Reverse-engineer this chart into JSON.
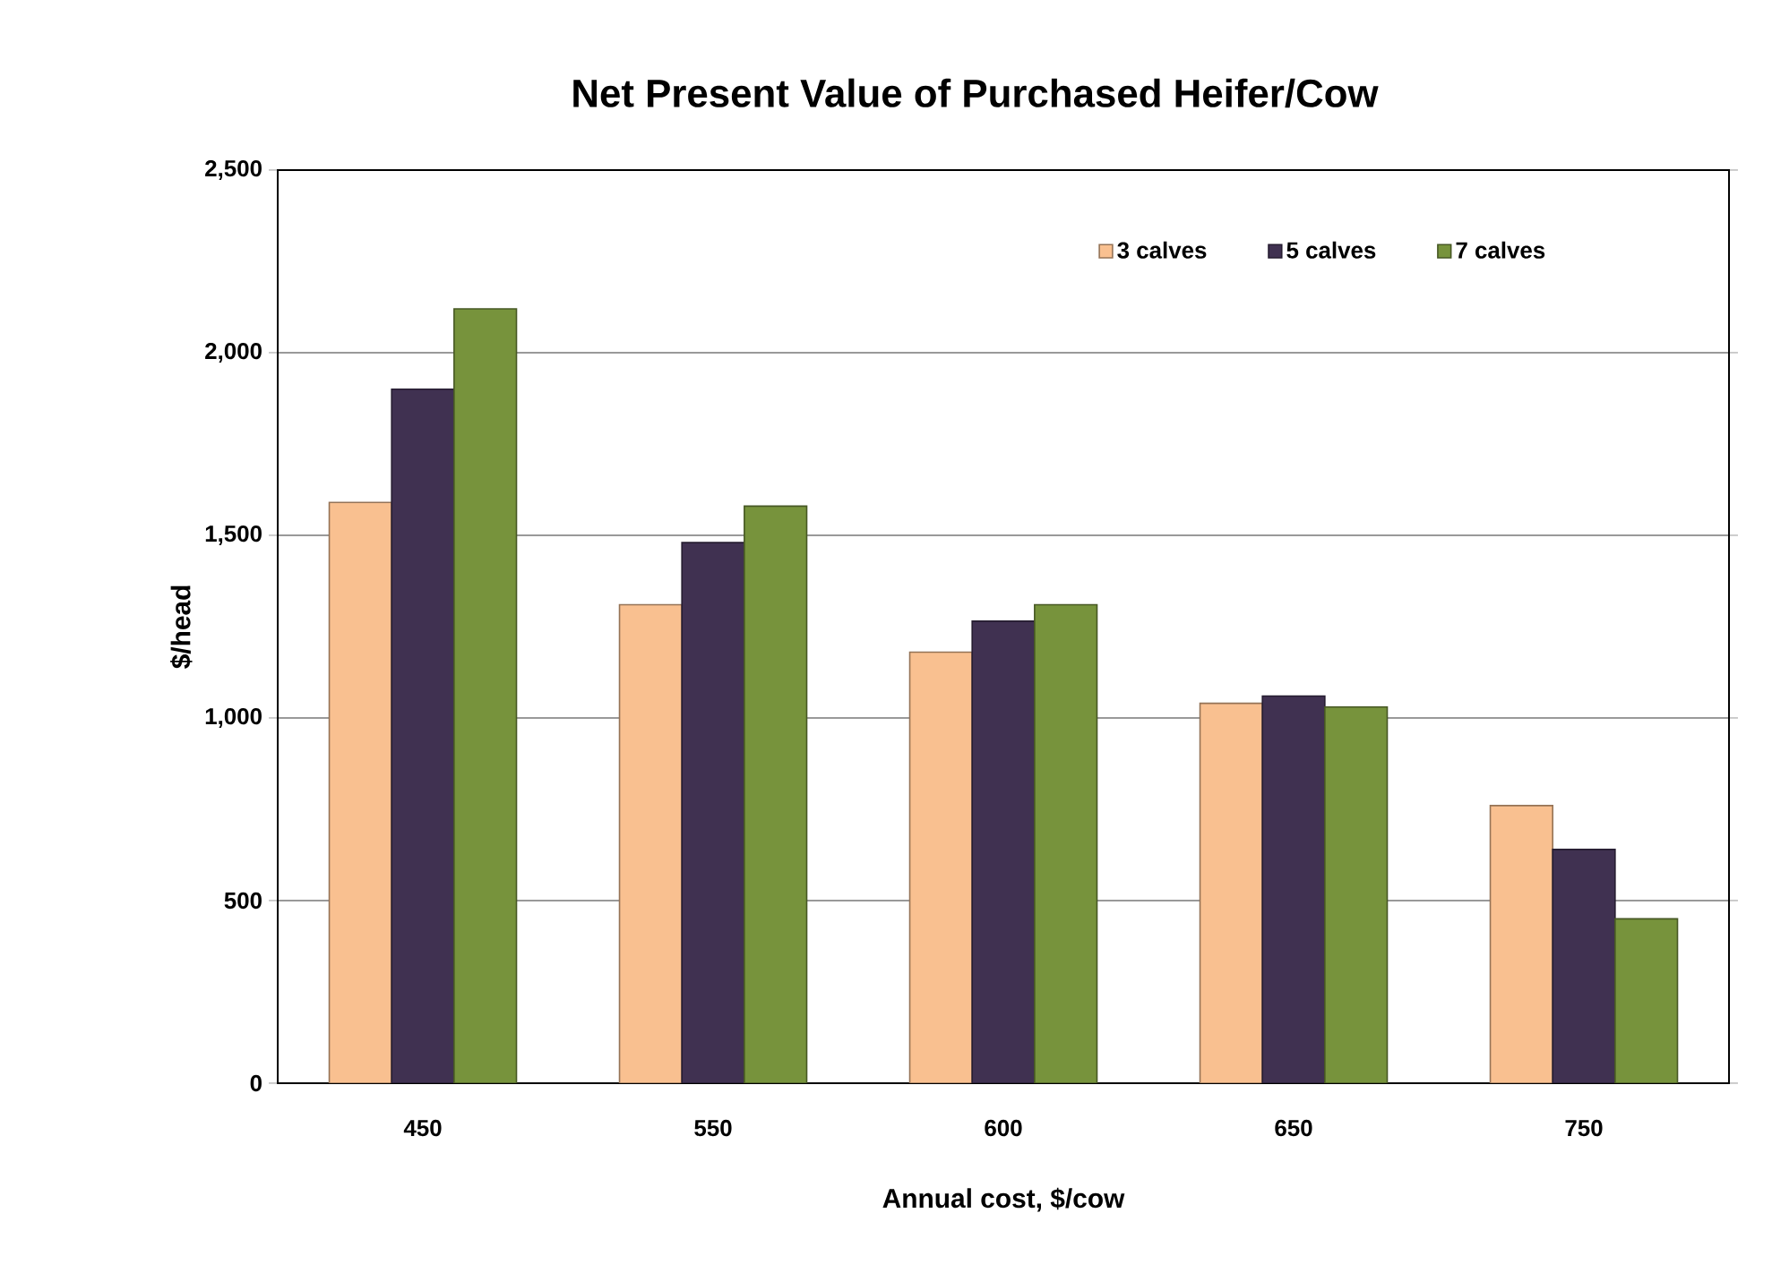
{
  "chart_data": {
    "type": "bar",
    "title": "Net Present Value of Purchased  Heifer/Cow",
    "xlabel": "Annual cost, $/cow",
    "ylabel": "$/head",
    "categories": [
      "450",
      "550",
      "600",
      "650",
      "750"
    ],
    "series": [
      {
        "name": "3 calves",
        "color": "#f9c090",
        "values": [
          1590,
          1310,
          1180,
          1040,
          760
        ]
      },
      {
        "name": "5 calves",
        "color": "#403151",
        "values": [
          1900,
          1480,
          1265,
          1060,
          640
        ]
      },
      {
        "name": "7 calves",
        "color": "#77933c",
        "values": [
          2120,
          1580,
          1310,
          1030,
          450
        ]
      }
    ],
    "ylim": [
      0,
      2500
    ],
    "yticks": [
      0,
      500,
      {
        "value": 1000,
        "label": "1,000"
      },
      {
        "value": 1500,
        "label": "1,500"
      },
      {
        "value": 2000,
        "label": "2,000"
      },
      {
        "value": 2500,
        "label": "2,500"
      }
    ],
    "grid": "y",
    "legend": "top right"
  }
}
